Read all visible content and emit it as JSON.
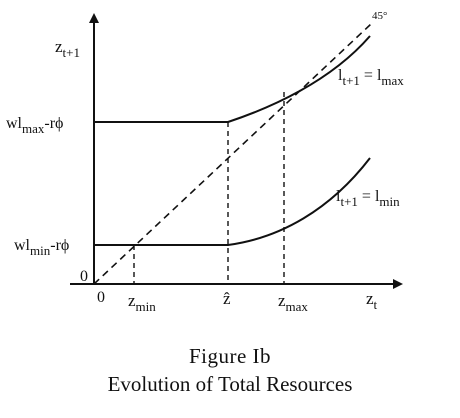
{
  "y_axis_label": {
    "base": "z",
    "sub": "t+1"
  },
  "x_axis_label": {
    "base": "z",
    "sub": "t"
  },
  "y_ticks": [
    {
      "pre": "wl",
      "sub": "max",
      "post": "-rϕ"
    },
    {
      "pre": "wl",
      "sub": "min",
      "post": "-rϕ"
    }
  ],
  "x_ticks": [
    {
      "base": "z",
      "sub": "min"
    },
    {
      "base": "ẑ",
      "sub": ""
    },
    {
      "base": "z",
      "sub": "max"
    }
  ],
  "origin_x": "0",
  "origin_y": "0",
  "diagonal_label": "45°",
  "curve_labels": [
    {
      "l1": "l",
      "l1sub": "t+1",
      "eq": " = ",
      "l2": "l",
      "l2sub": "max"
    },
    {
      "l1": "l",
      "l1sub": "t+1",
      "eq": " = ",
      "l2": "l",
      "l2sub": "min"
    }
  ],
  "caption": {
    "number": "Figure Ib",
    "title": "Evolution of Total Resources"
  }
}
